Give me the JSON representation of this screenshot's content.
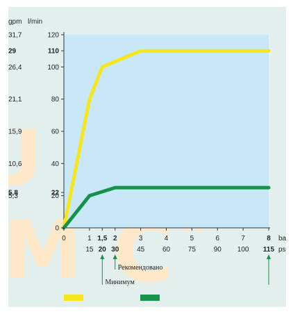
{
  "chart_data": {
    "type": "line",
    "units": {
      "flow_gpm": "gpm",
      "flow_lmin": "l/min",
      "pressure_bar": "bar",
      "pressure_psi": "psi"
    },
    "x_bar_ticks": [
      "0",
      "1",
      "1,5",
      "2",
      "3",
      "4",
      "5",
      "6",
      "7",
      "8"
    ],
    "x_bar_ticks_bold": [
      "1,5",
      "2",
      "8"
    ],
    "x_psi_ticks": [
      {
        "bar": 1,
        "label": "15"
      },
      {
        "bar": 1.5,
        "label": "20"
      },
      {
        "bar": 2,
        "label": "30"
      },
      {
        "bar": 3,
        "label": "45"
      },
      {
        "bar": 4,
        "label": "60"
      },
      {
        "bar": 5,
        "label": "75"
      },
      {
        "bar": 6,
        "label": "90"
      },
      {
        "bar": 7,
        "label": "100"
      },
      {
        "bar": 8,
        "label": "115"
      }
    ],
    "x_psi_bold": [
      "20",
      "30",
      "115"
    ],
    "y_lmin_ticks": [
      {
        "value": 0,
        "label": "0"
      },
      {
        "value": 20,
        "label": "20"
      },
      {
        "value": 22,
        "label": "22",
        "bold": true
      },
      {
        "value": 40,
        "label": "40"
      },
      {
        "value": 60,
        "label": "60"
      },
      {
        "value": 80,
        "label": "80"
      },
      {
        "value": 100,
        "label": "100"
      },
      {
        "value": 110,
        "label": "110",
        "bold": true
      },
      {
        "value": 120,
        "label": "120"
      }
    ],
    "y_gpm_ticks": [
      {
        "value": 20,
        "label": "5,3"
      },
      {
        "value": 22,
        "label": "5,8",
        "bold": true
      },
      {
        "value": 40,
        "label": "10,6"
      },
      {
        "value": 60,
        "label": "15,9"
      },
      {
        "value": 80,
        "label": "21,1"
      },
      {
        "value": 100,
        "label": "26,4"
      },
      {
        "value": 110,
        "label": "29",
        "bold": true
      },
      {
        "value": 120,
        "label": "31,7"
      }
    ],
    "xlim": [
      0,
      8
    ],
    "ylim": [
      0,
      120
    ],
    "series": [
      {
        "color": "#f5e61d",
        "x": [
          0,
          1,
          1.5,
          3,
          8
        ],
        "y": [
          0,
          80,
          100,
          110,
          110
        ]
      },
      {
        "color": "#17914c",
        "x": [
          0,
          1,
          2,
          3,
          8
        ],
        "y": [
          0,
          20,
          25,
          25,
          25
        ]
      }
    ],
    "annotations": [
      {
        "text": "Рекомендовано",
        "x_bar": 2
      },
      {
        "text": "Минимум",
        "x_bar": 1.5
      }
    ],
    "end_arrow_bar": 8,
    "legend_swatches": [
      "#f5e61d",
      "#17914c"
    ],
    "grid": false,
    "plot_background": "#c9e8f7",
    "panel_background": "#e3f0ee"
  }
}
